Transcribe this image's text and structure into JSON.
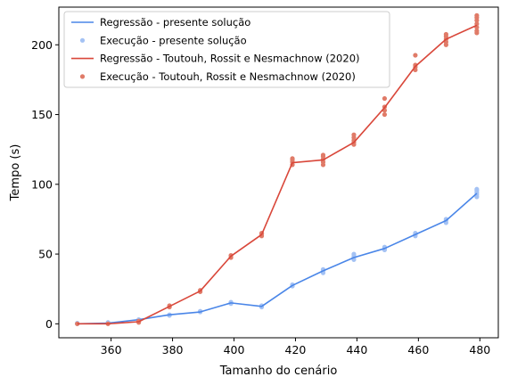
{
  "chart_data": {
    "type": "line",
    "xlabel": "Tamanho do cenário",
    "ylabel": "Tempo (s)",
    "xlim": [
      343,
      486
    ],
    "ylim": [
      -10,
      227
    ],
    "x_ticks": [
      360,
      380,
      400,
      420,
      440,
      460,
      480
    ],
    "y_ticks": [
      0,
      50,
      100,
      150,
      200
    ],
    "legend_position": "top-left",
    "grid": false,
    "x": [
      349,
      359,
      369,
      379,
      389,
      399,
      409,
      419,
      429,
      439,
      449,
      459,
      469,
      479
    ],
    "series": [
      {
        "name": "Regressão - presente solução",
        "kind": "line",
        "color": "#4a86e8",
        "values": [
          0,
          0.5,
          3,
          6.5,
          8.5,
          15,
          12.5,
          27.5,
          38,
          47.5,
          54,
          64,
          74,
          93.5
        ]
      },
      {
        "name": "Execução - presente solução",
        "kind": "scatter",
        "color": "#a4c2f4",
        "points": [
          [
            349,
            0
          ],
          [
            349,
            0.5
          ],
          [
            359,
            0.5
          ],
          [
            359,
            1
          ],
          [
            369,
            2.5
          ],
          [
            369,
            3
          ],
          [
            379,
            6
          ],
          [
            379,
            6.5
          ],
          [
            389,
            8.5
          ],
          [
            389,
            9
          ],
          [
            399,
            14.5
          ],
          [
            399,
            15
          ],
          [
            399,
            15.5
          ],
          [
            409,
            12
          ],
          [
            409,
            13
          ],
          [
            419,
            27
          ],
          [
            419,
            28
          ],
          [
            429,
            36.5
          ],
          [
            429,
            38
          ],
          [
            429,
            39
          ],
          [
            439,
            46
          ],
          [
            439,
            47.5
          ],
          [
            439,
            48.5
          ],
          [
            439,
            50
          ],
          [
            449,
            53
          ],
          [
            449,
            54
          ],
          [
            449,
            55
          ],
          [
            459,
            63
          ],
          [
            459,
            64
          ],
          [
            459,
            65
          ],
          [
            469,
            72.5
          ],
          [
            469,
            74
          ],
          [
            469,
            75
          ],
          [
            479,
            91
          ],
          [
            479,
            92.5
          ],
          [
            479,
            94
          ],
          [
            479,
            95.5
          ],
          [
            479,
            96.5
          ]
        ]
      },
      {
        "name": "Regressão - Toutouh, Rossit e Nesmachnow (2020)",
        "kind": "line",
        "color": "#d9473a",
        "values": [
          0,
          0,
          1.5,
          12.5,
          23.5,
          48.5,
          64,
          115.5,
          117.5,
          130,
          155,
          184.5,
          204,
          214
        ]
      },
      {
        "name": "Execução - Toutouh, Rossit e Nesmachnow (2020)",
        "kind": "scatter",
        "color": "#e07b68",
        "points": [
          [
            349,
            0
          ],
          [
            359,
            0
          ],
          [
            369,
            1
          ],
          [
            369,
            2
          ],
          [
            379,
            12
          ],
          [
            379,
            13
          ],
          [
            389,
            23
          ],
          [
            389,
            24
          ],
          [
            399,
            47.5
          ],
          [
            399,
            49
          ],
          [
            409,
            63
          ],
          [
            409,
            64.5
          ],
          [
            409,
            65
          ],
          [
            419,
            114
          ],
          [
            419,
            116
          ],
          [
            419,
            117.5
          ],
          [
            419,
            118.5
          ],
          [
            429,
            114
          ],
          [
            429,
            116
          ],
          [
            429,
            118
          ],
          [
            429,
            120
          ],
          [
            429,
            121
          ],
          [
            439,
            128.5
          ],
          [
            439,
            130
          ],
          [
            439,
            131.5
          ],
          [
            439,
            133.5
          ],
          [
            439,
            135.5
          ],
          [
            449,
            150
          ],
          [
            449,
            153
          ],
          [
            449,
            155.5
          ],
          [
            449,
            161.5
          ],
          [
            459,
            182
          ],
          [
            459,
            184
          ],
          [
            459,
            185.5
          ],
          [
            459,
            192.5
          ],
          [
            469,
            200
          ],
          [
            469,
            202
          ],
          [
            469,
            204
          ],
          [
            469,
            206
          ],
          [
            469,
            207.5
          ],
          [
            479,
            208.5
          ],
          [
            479,
            210
          ],
          [
            479,
            212.5
          ],
          [
            479,
            215
          ],
          [
            479,
            217.5
          ],
          [
            479,
            219.5
          ],
          [
            479,
            221
          ]
        ]
      }
    ]
  }
}
